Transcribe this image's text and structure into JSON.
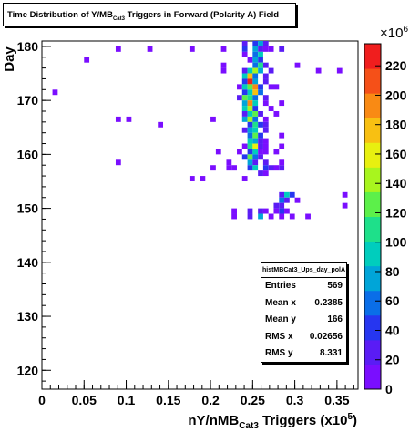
{
  "title": "Time Distribution of Υ/MB",
  "title_sub": "Cat3",
  "title_rest": " Triggers in Forward (Polarity A) Field",
  "stats": {
    "name": "histMBCat3_Ups_day_polA",
    "rows": [
      {
        "label": "Entries",
        "value": "569"
      },
      {
        "label": "Mean x",
        "value": "0.2385"
      },
      {
        "label": "Mean y",
        "value": "166"
      },
      {
        "label": "RMS x",
        "value": "0.02656"
      },
      {
        "label": "RMS y",
        "value": "8.331"
      }
    ]
  },
  "chart_data": {
    "type": "heatmap",
    "xlabel_parts": [
      "nΥ/nMB",
      "Cat3",
      " Triggers (x10",
      "5",
      ")"
    ],
    "ylabel": "Day",
    "xlim": [
      0,
      0.375
    ],
    "ylim": [
      116.5,
      181
    ],
    "x_ticks": [
      "0",
      "0.05",
      "0.1",
      "0.15",
      "0.2",
      "0.25",
      "0.3",
      "0.35"
    ],
    "x_tick_values": [
      0,
      0.05,
      0.1,
      0.15,
      0.2,
      0.25,
      0.3,
      0.35
    ],
    "y_ticks": [
      "120",
      "130",
      "140",
      "150",
      "160",
      "170",
      "180"
    ],
    "y_tick_values": [
      120,
      130,
      140,
      150,
      160,
      170,
      180
    ],
    "z_ticks": [
      "0",
      "20",
      "40",
      "60",
      "80",
      "100",
      "120",
      "140",
      "160",
      "180",
      "200",
      "220"
    ],
    "z_tick_values": [
      0,
      20,
      40,
      60,
      80,
      100,
      120,
      140,
      160,
      180,
      200,
      220
    ],
    "zlim": [
      0,
      235
    ],
    "z_multiplier": "×10",
    "z_multiplier_exp": "6",
    "bin_width_x": 0.00625,
    "bin_height_y": 1,
    "cells": [
      [
        0.0875,
        179,
        8
      ],
      [
        0.125,
        179,
        8
      ],
      [
        0.175,
        179,
        8
      ],
      [
        0.2125,
        179,
        8
      ],
      [
        0.2625,
        179,
        8
      ],
      [
        0.05,
        177,
        8
      ],
      [
        0.3,
        176,
        8
      ],
      [
        0.325,
        175,
        8
      ],
      [
        0.35,
        175,
        8
      ],
      [
        0.2125,
        176,
        15
      ],
      [
        0.2125,
        175,
        8
      ],
      [
        0.25,
        180,
        40
      ],
      [
        0.2563,
        180,
        70
      ],
      [
        0.2375,
        180,
        20
      ],
      [
        0.2625,
        180,
        20
      ],
      [
        0.2375,
        179,
        45
      ],
      [
        0.25,
        179,
        80
      ],
      [
        0.2563,
        179,
        25
      ],
      [
        0.2688,
        179,
        15
      ],
      [
        0.2813,
        179,
        20
      ],
      [
        0.2375,
        178,
        15
      ],
      [
        0.25,
        178,
        60
      ],
      [
        0.2563,
        178,
        95
      ],
      [
        0.2438,
        177,
        10
      ],
      [
        0.25,
        177,
        70
      ],
      [
        0.2563,
        177,
        35
      ],
      [
        0.25,
        176,
        55
      ],
      [
        0.2563,
        176,
        110
      ],
      [
        0.2625,
        176,
        30
      ],
      [
        0.2375,
        175,
        25
      ],
      [
        0.2438,
        175,
        90
      ],
      [
        0.25,
        175,
        150
      ],
      [
        0.2563,
        175,
        70
      ],
      [
        0.2688,
        175,
        20
      ],
      [
        0.2375,
        174,
        100
      ],
      [
        0.2438,
        174,
        170
      ],
      [
        0.25,
        174,
        60
      ],
      [
        0.2625,
        174,
        30
      ],
      [
        0.2375,
        173,
        50
      ],
      [
        0.2438,
        173,
        225
      ],
      [
        0.25,
        173,
        80
      ],
      [
        0.2625,
        173,
        25
      ],
      [
        0.2313,
        172,
        15
      ],
      [
        0.2375,
        172,
        85
      ],
      [
        0.2438,
        172,
        130
      ],
      [
        0.25,
        172,
        200
      ],
      [
        0.2563,
        172,
        40
      ],
      [
        0.2688,
        172,
        10
      ],
      [
        0.2375,
        171,
        45
      ],
      [
        0.2438,
        171,
        90
      ],
      [
        0.25,
        171,
        180
      ],
      [
        0.2563,
        171,
        60
      ],
      [
        0.2313,
        170,
        20
      ],
      [
        0.2375,
        170,
        130
      ],
      [
        0.2438,
        170,
        110
      ],
      [
        0.25,
        170,
        60
      ],
      [
        0.2625,
        170,
        20
      ],
      [
        0.2375,
        169,
        70
      ],
      [
        0.2438,
        169,
        190
      ],
      [
        0.25,
        169,
        90
      ],
      [
        0.2625,
        169,
        15
      ],
      [
        0.2375,
        168,
        100
      ],
      [
        0.2438,
        168,
        140
      ],
      [
        0.25,
        168,
        40
      ],
      [
        0.2688,
        168,
        15
      ],
      [
        0.2375,
        167,
        30
      ],
      [
        0.2438,
        167,
        90
      ],
      [
        0.25,
        167,
        120
      ],
      [
        0.2563,
        167,
        25
      ],
      [
        0.2375,
        166,
        80
      ],
      [
        0.2438,
        166,
        150
      ],
      [
        0.25,
        166,
        60
      ],
      [
        0.2625,
        166,
        10
      ],
      [
        0.2438,
        165,
        40
      ],
      [
        0.25,
        165,
        110
      ],
      [
        0.2563,
        165,
        35
      ],
      [
        0.2375,
        164,
        25
      ],
      [
        0.2438,
        164,
        70
      ],
      [
        0.25,
        164,
        100
      ],
      [
        0.2625,
        164,
        20
      ],
      [
        0.2438,
        163,
        60
      ],
      [
        0.25,
        163,
        130
      ],
      [
        0.2563,
        163,
        45
      ],
      [
        0.2438,
        162,
        90
      ],
      [
        0.25,
        162,
        70
      ],
      [
        0.2563,
        162,
        20
      ],
      [
        0.2375,
        161,
        15
      ],
      [
        0.2438,
        161,
        110
      ],
      [
        0.25,
        161,
        160
      ],
      [
        0.2563,
        161,
        30
      ],
      [
        0.2438,
        160,
        50
      ],
      [
        0.25,
        160,
        90
      ],
      [
        0.2625,
        160,
        15
      ],
      [
        0.2375,
        159,
        40
      ],
      [
        0.2438,
        159,
        120
      ],
      [
        0.25,
        159,
        60
      ],
      [
        0.2563,
        159,
        20
      ],
      [
        0.2438,
        158,
        80
      ],
      [
        0.25,
        158,
        30
      ],
      [
        0.2625,
        158,
        25
      ],
      [
        0.2438,
        157,
        50
      ],
      [
        0.25,
        157,
        90
      ],
      [
        0.2625,
        157,
        40
      ],
      [
        0.2688,
        157,
        20
      ],
      [
        0.2563,
        156,
        30
      ],
      [
        0.2625,
        156,
        15
      ],
      [
        0.2813,
        152,
        30
      ],
      [
        0.2875,
        152,
        90
      ],
      [
        0.2938,
        152,
        40
      ],
      [
        0.2813,
        151,
        60
      ],
      [
        0.2875,
        151,
        20
      ],
      [
        0.3,
        151,
        15
      ],
      [
        0.275,
        150,
        25
      ],
      [
        0.2813,
        150,
        30
      ],
      [
        0.2438,
        149,
        30
      ],
      [
        0.2563,
        149,
        20
      ],
      [
        0.2625,
        149,
        10
      ],
      [
        0.275,
        149,
        15
      ],
      [
        0.2813,
        149,
        40
      ],
      [
        0.2875,
        149,
        10
      ],
      [
        0.2438,
        148,
        20
      ],
      [
        0.2563,
        148,
        80
      ],
      [
        0.2688,
        148,
        10
      ],
      [
        0.2813,
        148,
        15
      ],
      [
        0.2938,
        148,
        10
      ],
      [
        0.225,
        148,
        8
      ],
      [
        0.225,
        149,
        8
      ],
      [
        0.3563,
        152,
        8
      ],
      [
        0.3563,
        150,
        8
      ],
      [
        0.3125,
        148,
        8
      ],
      [
        0.0125,
        171,
        8
      ],
      [
        0.0875,
        166,
        8
      ],
      [
        0.1,
        166,
        8
      ],
      [
        0.1375,
        165,
        8
      ],
      [
        0.2,
        166,
        8
      ],
      [
        0.0875,
        158,
        8
      ],
      [
        0.2313,
        160,
        8
      ],
      [
        0.2188,
        158,
        8
      ],
      [
        0.2,
        157,
        8
      ],
      [
        0.2063,
        160,
        8
      ],
      [
        0.1875,
        155,
        8
      ],
      [
        0.175,
        155,
        8
      ],
      [
        0.2375,
        155,
        10
      ],
      [
        0.2188,
        157,
        8
      ],
      [
        0.225,
        157,
        8
      ],
      [
        0.2625,
        161,
        10
      ],
      [
        0.2563,
        160,
        10
      ],
      [
        0.2813,
        163,
        8
      ],
      [
        0.2813,
        161,
        8
      ],
      [
        0.275,
        167,
        8
      ],
      [
        0.275,
        172,
        8
      ],
      [
        0.2813,
        169,
        8
      ],
      [
        0.275,
        160,
        10
      ],
      [
        0.275,
        157,
        10
      ],
      [
        0.2813,
        157,
        30
      ],
      [
        0.2813,
        158,
        15
      ],
      [
        0.2625,
        165,
        20
      ],
      [
        0.2625,
        162,
        15
      ]
    ]
  },
  "colors": {
    "frame_bg": "#ffffff",
    "palette": [
      "#7a0eff",
      "#5a1cf5",
      "#2636f0",
      "#0a6ee8",
      "#00a5d8",
      "#00cdbd",
      "#1ee08a",
      "#5cf04a",
      "#a8f51e",
      "#e8f010",
      "#f8c012",
      "#f98a14",
      "#f55018",
      "#f01e1e"
    ]
  }
}
